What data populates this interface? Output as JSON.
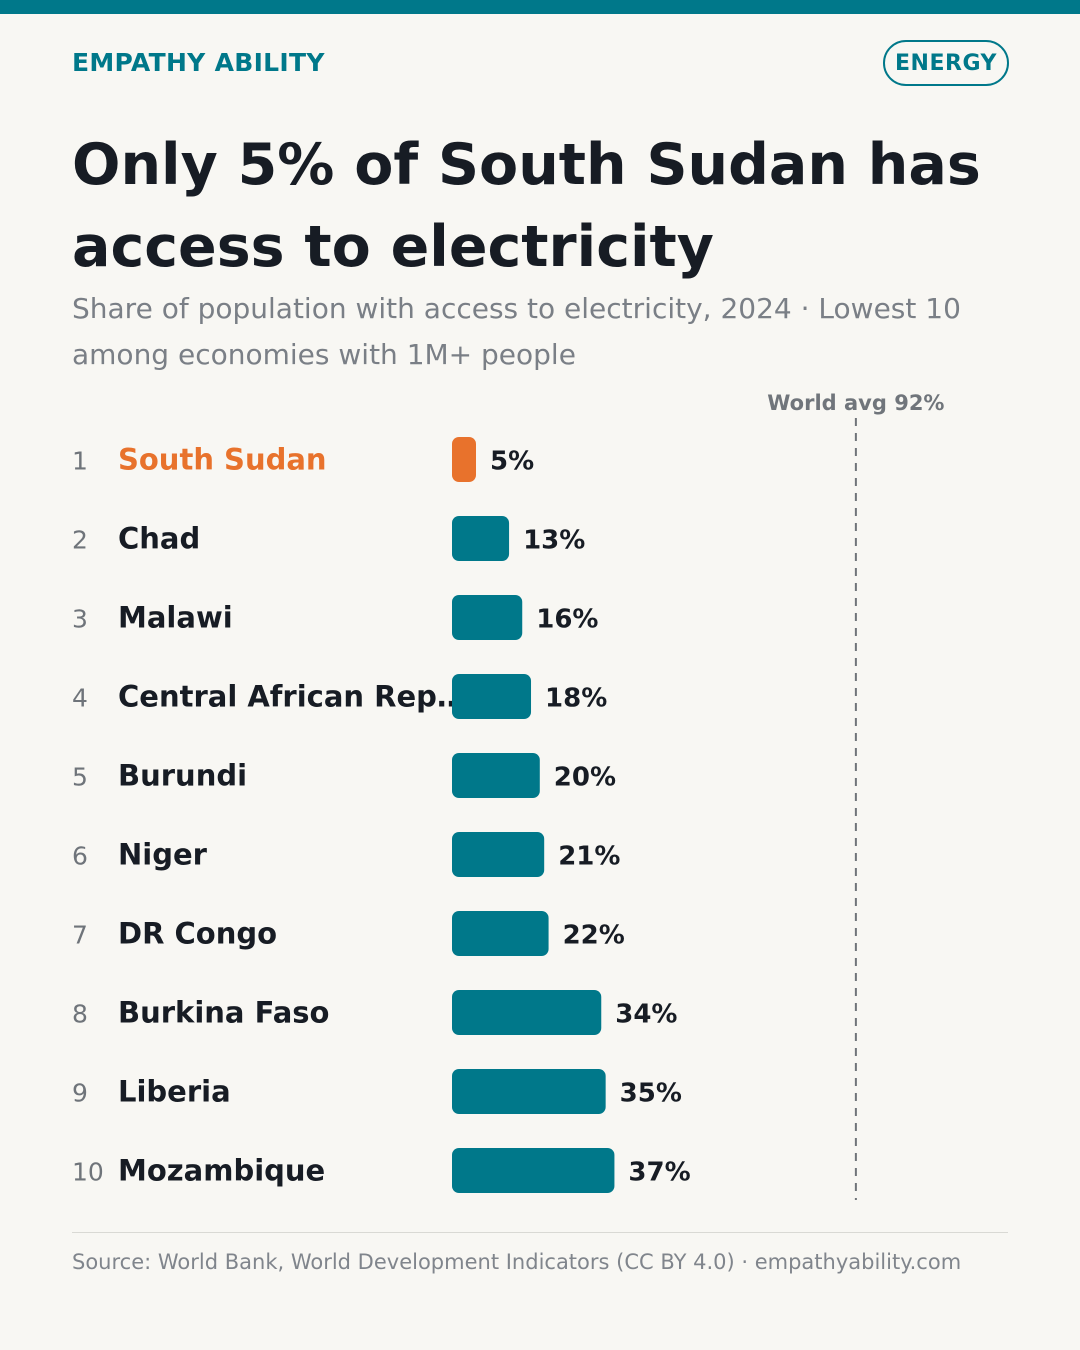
{
  "brand": "EMPATHY ABILITY",
  "tag": "ENERGY",
  "title": "Only 5% of South Sudan has access to electricity",
  "subtitle": "Share of population with access to electricity, 2024 · Lowest 10 among economies with 1M+ people",
  "source": "Source: World Bank, World Development Indicators (CC BY 4.0) · empathyability.com",
  "colors": {
    "accent": "#00788a",
    "highlight": "#e8722c",
    "text": "#171c24",
    "muted": "#7a7f86"
  },
  "chart_data": {
    "type": "bar",
    "orientation": "horizontal",
    "ranks": [
      "1",
      "2",
      "3",
      "4",
      "5",
      "6",
      "7",
      "8",
      "9",
      "10"
    ],
    "categories": [
      "South Sudan",
      "Chad",
      "Malawi",
      "Central African Rep…",
      "Burundi",
      "Niger",
      "DR Congo",
      "Burkina Faso",
      "Liberia",
      "Mozambique"
    ],
    "values": [
      5,
      13,
      16,
      18,
      20,
      21,
      22,
      34,
      35,
      37
    ],
    "value_labels": [
      "5%",
      "13%",
      "16%",
      "18%",
      "20%",
      "21%",
      "22%",
      "34%",
      "35%",
      "37%"
    ],
    "highlight_index": 0,
    "xlim": [
      0,
      100
    ],
    "reference_line": {
      "value": 92,
      "label": "World avg 92%"
    },
    "grid": false
  }
}
